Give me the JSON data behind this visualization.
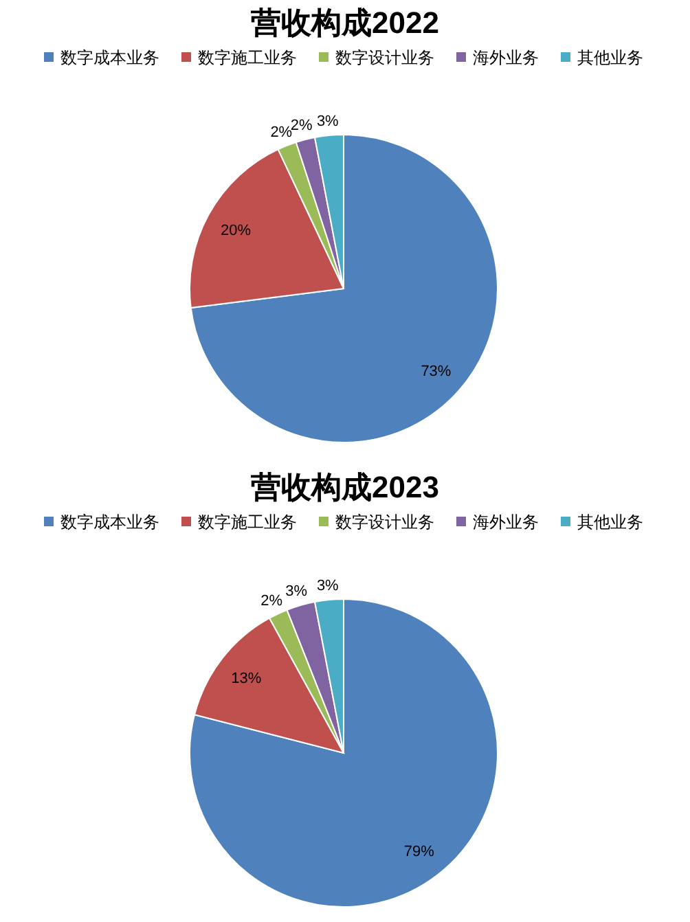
{
  "chart_data": [
    {
      "type": "pie",
      "title": "营收构成2022",
      "categories": [
        "数字成本业务",
        "数字施工业务",
        "数字设计业务",
        "海外业务",
        "其他业务"
      ],
      "values": [
        73,
        20,
        2,
        2,
        3
      ],
      "value_labels": [
        "73%",
        "20%",
        "2%",
        "2%",
        "3%"
      ],
      "colors": [
        "#4f81bd",
        "#c0504d",
        "#9bbb59",
        "#8064a2",
        "#4bacc6"
      ],
      "legend": "top"
    },
    {
      "type": "pie",
      "title": "营收构成2023",
      "categories": [
        "数字成本业务",
        "数字施工业务",
        "数字设计业务",
        "海外业务",
        "其他业务"
      ],
      "values": [
        79,
        13,
        2,
        3,
        3
      ],
      "value_labels": [
        "79%",
        "13%",
        "2%",
        "3%",
        "3%"
      ],
      "colors": [
        "#4f81bd",
        "#c0504d",
        "#9bbb59",
        "#8064a2",
        "#4bacc6"
      ],
      "legend": "top"
    }
  ]
}
